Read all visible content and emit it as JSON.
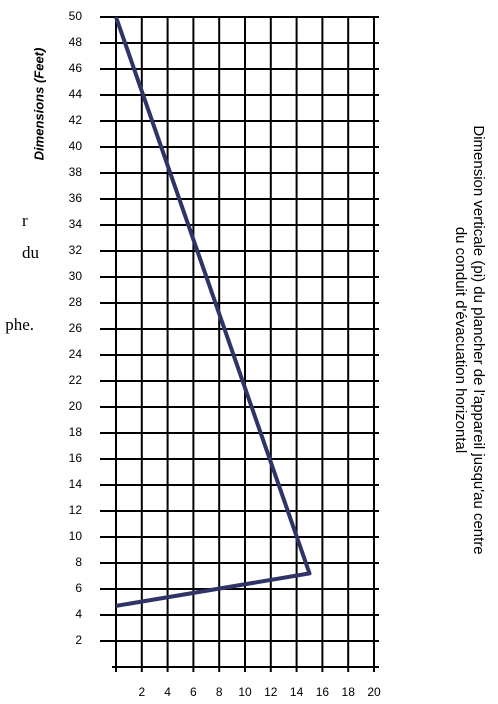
{
  "chart_data": {
    "type": "line",
    "fragments": [
      "r",
      "du",
      "phe."
    ],
    "ylabel": "Dimensions (Feet)",
    "title_lines": [
      "Dimension verticale  (pi) du plancher de l'appareil jusqu'au centre",
      "du conduit d'évacuation horizontal"
    ],
    "x": [
      0,
      15,
      0
    ],
    "series": [
      {
        "color": "#2e3466",
        "values": [
          4.7,
          7.2,
          50
        ]
      }
    ],
    "xlim": [
      0,
      20
    ],
    "ylim": [
      0,
      50
    ],
    "xticks": [
      2,
      4,
      6,
      8,
      10,
      12,
      14,
      16,
      18,
      20
    ],
    "yticks": [
      2,
      4,
      6,
      8,
      10,
      12,
      14,
      16,
      18,
      20,
      22,
      24,
      26,
      28,
      30,
      32,
      34,
      36,
      38,
      40,
      42,
      44,
      46,
      48,
      50
    ],
    "grid": true
  }
}
